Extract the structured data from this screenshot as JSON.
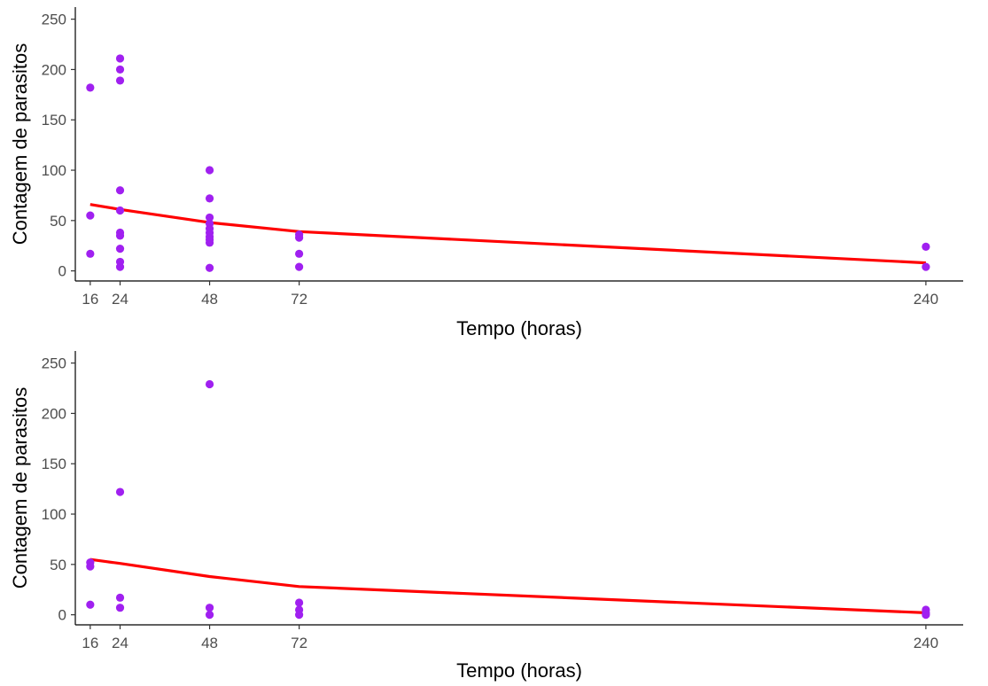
{
  "colors": {
    "points": "#a020f0",
    "trend": "#ff0000"
  },
  "chart_data": [
    {
      "type": "scatter",
      "xlabel": "Tempo (horas)",
      "ylabel": "Contagem de parasitos",
      "x_ticks": [
        "16",
        "24",
        "48",
        "72",
        "240"
      ],
      "y_ticks": [
        "0",
        "50",
        "100",
        "150",
        "200",
        "250"
      ],
      "xlim": [
        12,
        250
      ],
      "ylim": [
        -10,
        262
      ],
      "points": [
        {
          "x": 16,
          "y": 182
        },
        {
          "x": 16,
          "y": 55
        },
        {
          "x": 16,
          "y": 17
        },
        {
          "x": 24,
          "y": 211
        },
        {
          "x": 24,
          "y": 200
        },
        {
          "x": 24,
          "y": 189
        },
        {
          "x": 24,
          "y": 80
        },
        {
          "x": 24,
          "y": 60
        },
        {
          "x": 24,
          "y": 38
        },
        {
          "x": 24,
          "y": 35
        },
        {
          "x": 24,
          "y": 22
        },
        {
          "x": 24,
          "y": 9
        },
        {
          "x": 24,
          "y": 4
        },
        {
          "x": 48,
          "y": 100
        },
        {
          "x": 48,
          "y": 72
        },
        {
          "x": 48,
          "y": 53
        },
        {
          "x": 48,
          "y": 47
        },
        {
          "x": 48,
          "y": 42
        },
        {
          "x": 48,
          "y": 38
        },
        {
          "x": 48,
          "y": 34
        },
        {
          "x": 48,
          "y": 31
        },
        {
          "x": 48,
          "y": 28
        },
        {
          "x": 48,
          "y": 3
        },
        {
          "x": 72,
          "y": 36
        },
        {
          "x": 72,
          "y": 33
        },
        {
          "x": 72,
          "y": 17
        },
        {
          "x": 72,
          "y": 4
        },
        {
          "x": 240,
          "y": 24
        },
        {
          "x": 240,
          "y": 4
        }
      ],
      "trend": [
        {
          "x": 16,
          "y": 66
        },
        {
          "x": 24,
          "y": 61
        },
        {
          "x": 48,
          "y": 48
        },
        {
          "x": 72,
          "y": 39
        },
        {
          "x": 240,
          "y": 8
        }
      ]
    },
    {
      "type": "scatter",
      "xlabel": "Tempo (horas)",
      "ylabel": "Contagem de parasitos",
      "x_ticks": [
        "16",
        "24",
        "48",
        "72",
        "240"
      ],
      "y_ticks": [
        "0",
        "50",
        "100",
        "150",
        "200",
        "250"
      ],
      "xlim": [
        12,
        250
      ],
      "ylim": [
        -10,
        262
      ],
      "points": [
        {
          "x": 16,
          "y": 52
        },
        {
          "x": 16,
          "y": 48
        },
        {
          "x": 16,
          "y": 10
        },
        {
          "x": 24,
          "y": 122
        },
        {
          "x": 24,
          "y": 17
        },
        {
          "x": 24,
          "y": 7
        },
        {
          "x": 48,
          "y": 229
        },
        {
          "x": 48,
          "y": 7
        },
        {
          "x": 48,
          "y": 0
        },
        {
          "x": 72,
          "y": 12
        },
        {
          "x": 72,
          "y": 5
        },
        {
          "x": 72,
          "y": 0
        },
        {
          "x": 240,
          "y": 5
        },
        {
          "x": 240,
          "y": 2
        },
        {
          "x": 240,
          "y": 0
        }
      ],
      "trend": [
        {
          "x": 16,
          "y": 55
        },
        {
          "x": 24,
          "y": 51
        },
        {
          "x": 48,
          "y": 38
        },
        {
          "x": 72,
          "y": 28
        },
        {
          "x": 240,
          "y": 2
        }
      ]
    }
  ]
}
